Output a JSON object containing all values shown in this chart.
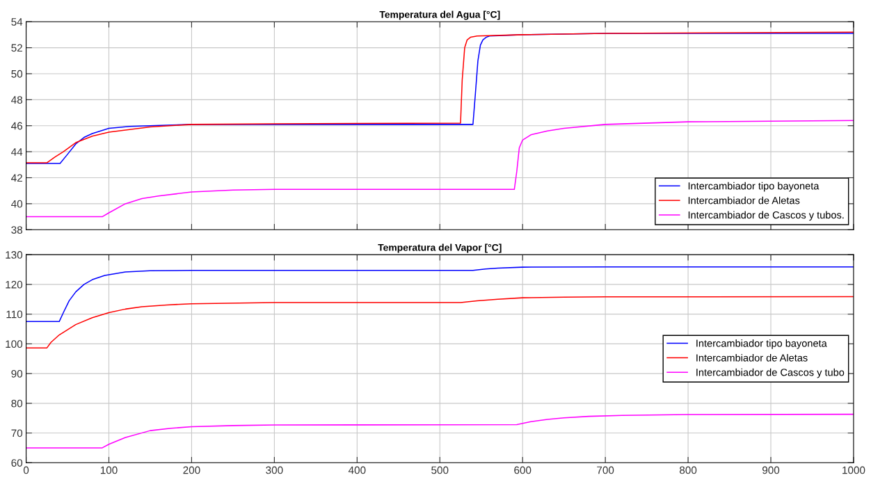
{
  "chart_data": [
    {
      "type": "line",
      "title": "Temperatura del Agua [°C]",
      "xlim": [
        0,
        1000
      ],
      "xticks": [
        0,
        100,
        200,
        300,
        400,
        500,
        600,
        700,
        800,
        900,
        1000
      ],
      "ylim": [
        38,
        54
      ],
      "yticks": [
        38,
        40,
        42,
        44,
        46,
        48,
        50,
        52,
        54
      ],
      "grid": true,
      "legend": "lower right",
      "tick_labels": "y",
      "series": [
        {
          "name": "Intercambiador tipo bayoneta",
          "color": "#0000ff",
          "x": [
            0,
            41,
            50,
            60,
            70,
            80,
            100,
            125,
            150,
            200,
            300,
            540,
            543,
            546,
            549,
            552,
            556,
            560,
            600,
            700,
            1000
          ],
          "values": [
            43.1,
            43.1,
            43.8,
            44.6,
            45.1,
            45.4,
            45.8,
            45.95,
            46.0,
            46.1,
            46.1,
            46.1,
            48.5,
            51.0,
            52.2,
            52.6,
            52.8,
            52.9,
            53.0,
            53.1,
            53.1
          ]
        },
        {
          "name": "Intercambiador de Aletas",
          "color": "#ff0000",
          "x": [
            0,
            25,
            35,
            45,
            60,
            80,
            100,
            150,
            200,
            300,
            525,
            527,
            530,
            533,
            537,
            545,
            600,
            700,
            1000
          ],
          "values": [
            43.15,
            43.15,
            43.6,
            44.0,
            44.7,
            45.2,
            45.5,
            45.9,
            46.1,
            46.15,
            46.2,
            49.5,
            52.0,
            52.6,
            52.8,
            52.9,
            53.0,
            53.1,
            53.2
          ]
        },
        {
          "name": "Intercambiador de Cascos y tubos.",
          "color": "#ff00ff",
          "x": [
            0,
            92,
            100,
            120,
            140,
            160,
            200,
            250,
            300,
            590,
            593,
            596,
            600,
            610,
            630,
            650,
            700,
            800,
            1000
          ],
          "values": [
            39.0,
            39.0,
            39.3,
            40.0,
            40.4,
            40.6,
            40.9,
            41.05,
            41.1,
            41.1,
            42.5,
            44.3,
            44.9,
            45.3,
            45.6,
            45.8,
            46.1,
            46.3,
            46.4
          ]
        }
      ]
    },
    {
      "type": "line",
      "title": "Temperatura del Vapor [°C]",
      "xlim": [
        0,
        1000
      ],
      "xticks": [
        0,
        100,
        200,
        300,
        400,
        500,
        600,
        700,
        800,
        900,
        1000
      ],
      "ylim": [
        60,
        130
      ],
      "yticks": [
        60,
        70,
        80,
        90,
        100,
        110,
        120,
        130
      ],
      "grid": true,
      "legend": "center right",
      "series": [
        {
          "name": "Intercambiador tipo bayoneta",
          "color": "#0000ff",
          "x": [
            0,
            40,
            45,
            52,
            60,
            70,
            80,
            95,
            120,
            150,
            200,
            300,
            540,
            555,
            570,
            600,
            700,
            1000
          ],
          "values": [
            107.5,
            107.5,
            110.5,
            114.5,
            117.5,
            120.0,
            121.6,
            123.0,
            124.2,
            124.6,
            124.7,
            124.7,
            124.7,
            125.2,
            125.5,
            125.8,
            125.9,
            125.9
          ]
        },
        {
          "name": "Intercambiador de Aletas",
          "color": "#ff0000",
          "x": [
            0,
            25,
            30,
            40,
            60,
            80,
            100,
            120,
            140,
            170,
            200,
            300,
            525,
            545,
            570,
            600,
            650,
            700,
            1000
          ],
          "values": [
            98.6,
            98.6,
            100.5,
            103.0,
            106.5,
            108.8,
            110.5,
            111.7,
            112.5,
            113.1,
            113.5,
            113.9,
            113.9,
            114.5,
            115.0,
            115.5,
            115.7,
            115.8,
            115.9
          ]
        },
        {
          "name": "Intercambiador de Cascos y tubo",
          "color": "#ff00ff",
          "x": [
            0,
            92,
            100,
            120,
            150,
            175,
            200,
            250,
            300,
            593,
            610,
            630,
            650,
            680,
            720,
            800,
            1000
          ],
          "values": [
            65.0,
            65.0,
            66.2,
            68.5,
            70.8,
            71.6,
            72.1,
            72.5,
            72.7,
            72.8,
            73.8,
            74.6,
            75.1,
            75.6,
            75.9,
            76.2,
            76.3
          ]
        }
      ]
    }
  ]
}
